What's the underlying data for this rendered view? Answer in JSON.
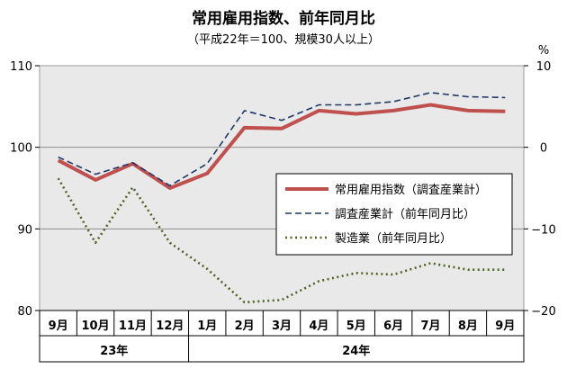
{
  "chart_data": {
    "type": "line",
    "title": "常用雇用指数、前年同月比",
    "subtitle": "（平成22年＝100、規模30人以上）",
    "right_axis_unit": "%",
    "categories": [
      "9月",
      "10月",
      "11月",
      "12月",
      "1月",
      "2月",
      "3月",
      "4月",
      "5月",
      "6月",
      "7月",
      "8月",
      "9月"
    ],
    "year_groups": [
      {
        "label": "23年",
        "start": 0,
        "end": 3
      },
      {
        "label": "24年",
        "start": 4,
        "end": 12
      }
    ],
    "y_left": {
      "min": 80,
      "max": 110,
      "ticks": [
        80,
        90,
        100,
        110
      ]
    },
    "y_right": {
      "min": -20,
      "max": 10,
      "ticks": [
        -20,
        -10,
        0,
        10
      ],
      "tick_labels": [
        "−20",
        "−10",
        "0",
        "10"
      ]
    },
    "gridlines": [
      90,
      100
    ],
    "legend_position": "center-right",
    "series": [
      {
        "name": "常用雇用指数（調査産業計）",
        "axis": "left",
        "style": "solid",
        "color": "#c0504d",
        "values": [
          98.4,
          96.0,
          98.0,
          95.0,
          96.8,
          102.4,
          102.3,
          104.5,
          104.1,
          104.5,
          105.2,
          104.5,
          104.4
        ]
      },
      {
        "name": "調査産業計（前年同月比）",
        "axis": "right",
        "style": "dashed",
        "color": "#1f3864",
        "values": [
          -1.2,
          -3.3,
          -1.9,
          -4.7,
          -2.0,
          4.5,
          3.3,
          5.2,
          5.2,
          5.6,
          6.7,
          6.2,
          6.1
        ]
      },
      {
        "name": "製造業（前年同月比）",
        "axis": "right",
        "style": "dotted",
        "color": "#4f6228",
        "values": [
          -3.8,
          -11.7,
          -4.9,
          -11.7,
          -14.9,
          -19.0,
          -18.7,
          -16.4,
          -15.4,
          -15.6,
          -14.2,
          -15.0,
          -15.0
        ]
      }
    ]
  }
}
